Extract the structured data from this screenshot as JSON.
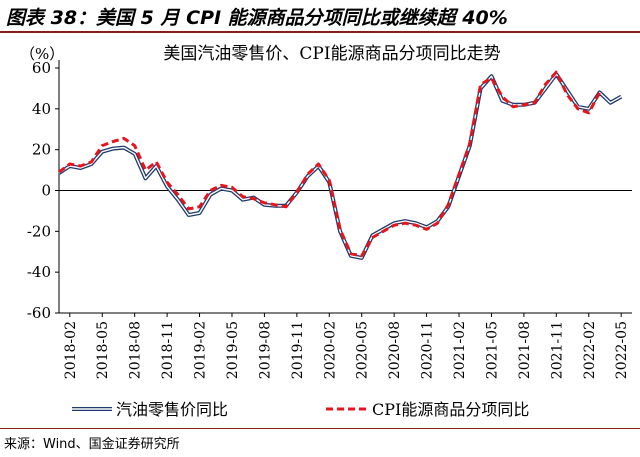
{
  "figure": {
    "title": "图表 38：美国 5 月 CPI 能源商品分项同比或继续超 40%",
    "source": "来源：Wind、国金证券研究所"
  },
  "chart_data": {
    "type": "line",
    "title": "美国汽油零售价、CPI能源商品分项同比走势",
    "ylabel": "（%）",
    "ylim": [
      -60,
      60
    ],
    "yticks": [
      -60,
      -40,
      -20,
      0,
      20,
      40,
      60
    ],
    "xtick_labels": [
      "2018-02",
      "2018-05",
      "2018-08",
      "2018-11",
      "2019-02",
      "2019-05",
      "2019-08",
      "2019-11",
      "2020-02",
      "2020-05",
      "2020-08",
      "2020-11",
      "2021-02",
      "2021-05",
      "2021-08",
      "2021-11",
      "2022-02",
      "2022-05"
    ],
    "x": [
      "2018-01",
      "2018-02",
      "2018-03",
      "2018-04",
      "2018-05",
      "2018-06",
      "2018-07",
      "2018-08",
      "2018-09",
      "2018-10",
      "2018-11",
      "2018-12",
      "2019-01",
      "2019-02",
      "2019-03",
      "2019-04",
      "2019-05",
      "2019-06",
      "2019-07",
      "2019-08",
      "2019-09",
      "2019-10",
      "2019-11",
      "2019-12",
      "2020-01",
      "2020-02",
      "2020-03",
      "2020-04",
      "2020-05",
      "2020-06",
      "2020-07",
      "2020-08",
      "2020-09",
      "2020-10",
      "2020-11",
      "2020-12",
      "2021-01",
      "2021-02",
      "2021-03",
      "2021-04",
      "2021-05",
      "2021-06",
      "2021-07",
      "2021-08",
      "2021-09",
      "2021-10",
      "2021-11",
      "2021-12",
      "2022-01",
      "2022-02",
      "2022-03",
      "2022-04",
      "2022-05",
      "2022-06"
    ],
    "series": [
      {
        "name": "汽油零售价同比",
        "color": "#1f3a6e",
        "style": "double",
        "values": [
          8.5,
          12,
          11,
          13,
          19,
          20.5,
          21,
          18,
          6,
          12,
          2,
          -4.5,
          -12,
          -11,
          -2,
          1,
          0,
          -4.5,
          -3.5,
          -7,
          -7.5,
          -7.5,
          -1,
          7,
          12,
          4,
          -20,
          -32,
          -33,
          -22,
          -19,
          -16,
          -15,
          -16,
          -18,
          -15,
          -8,
          7,
          22,
          50,
          56,
          44,
          42,
          42,
          43,
          50,
          57,
          49,
          41,
          40,
          48,
          43,
          46,
          null
        ]
      },
      {
        "name": "CPI能源商品分项同比",
        "color": "#e8141b",
        "style": "dashed",
        "values": [
          9,
          13,
          12,
          14,
          22,
          24,
          25.5,
          22,
          10,
          14,
          4,
          -2,
          -9,
          -8,
          0,
          2.5,
          1.5,
          -3,
          -4,
          -6,
          -7,
          -8,
          -1,
          8,
          13,
          5,
          -19,
          -31,
          -32,
          -23,
          -20,
          -17,
          -16,
          -17,
          -19,
          -16,
          -7,
          8,
          23,
          52,
          55,
          46,
          41,
          42,
          43,
          52,
          58,
          47,
          40,
          38,
          48,
          null,
          null,
          null
        ]
      }
    ]
  }
}
